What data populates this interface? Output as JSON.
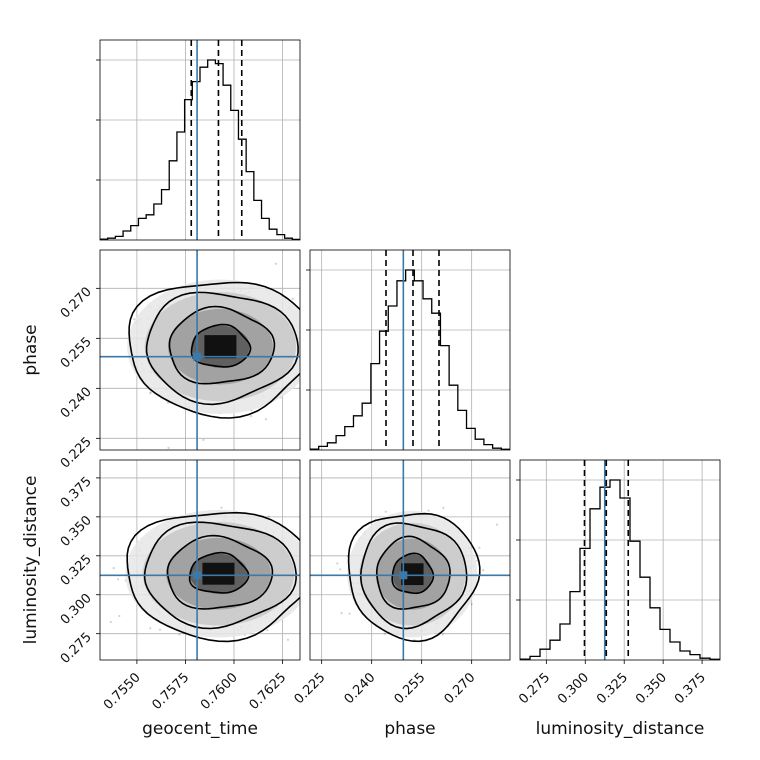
{
  "chart_data": {
    "type": "corner",
    "parameters": [
      {
        "key": "geocent_time",
        "label": "geocent_time",
        "truth": 0.7581,
        "ticks": [
          "0.7550",
          "0.7575",
          "0.7600",
          "0.7625"
        ],
        "tick_values": [
          0.755,
          0.7575,
          0.76,
          0.7625
        ],
        "range": [
          0.7531,
          0.7634
        ],
        "quantiles": [
          0.7578,
          0.7592,
          0.7604
        ]
      },
      {
        "key": "phase",
        "label": "phase",
        "truth": 0.2495,
        "ticks": [
          "0.225",
          "0.240",
          "0.255",
          "0.270"
        ],
        "tick_values": [
          0.225,
          0.24,
          0.255,
          0.27
        ],
        "range": [
          0.2215,
          0.2815
        ],
        "quantiles": [
          0.2443,
          0.2524,
          0.2602
        ]
      },
      {
        "key": "luminosity_distance",
        "label": "luminosity_distance",
        "truth": 0.3125,
        "ticks": [
          "0.275",
          "0.300",
          "0.325",
          "0.350",
          "0.375"
        ],
        "tick_values": [
          0.275,
          0.3,
          0.325,
          0.35,
          0.375
        ],
        "range": [
          0.2581,
          0.3865
        ],
        "quantiles": [
          0.2995,
          0.3135,
          0.3276
        ]
      }
    ],
    "y_tick_labels": {
      "phase": [
        "0.270",
        "0.255",
        "0.240",
        "0.225"
      ],
      "luminosity_distance": [
        "0.375",
        "0.350",
        "0.325",
        "0.300",
        "0.275"
      ]
    },
    "histograms": {
      "geocent_time": [
        0.005,
        0.01,
        0.02,
        0.05,
        0.08,
        0.12,
        0.14,
        0.2,
        0.28,
        0.44,
        0.6,
        0.78,
        0.88,
        0.96,
        1.0,
        0.98,
        0.86,
        0.72,
        0.56,
        0.38,
        0.22,
        0.12,
        0.06,
        0.03,
        0.01,
        0.003
      ],
      "phase": [
        0.005,
        0.02,
        0.04,
        0.08,
        0.13,
        0.19,
        0.26,
        0.48,
        0.66,
        0.8,
        0.94,
        1.0,
        0.94,
        0.84,
        0.76,
        0.58,
        0.36,
        0.22,
        0.12,
        0.06,
        0.03,
        0.01,
        0.004
      ],
      "luminosity_distance": [
        0.005,
        0.02,
        0.06,
        0.11,
        0.2,
        0.38,
        0.62,
        0.84,
        0.96,
        1.0,
        0.9,
        0.66,
        0.46,
        0.29,
        0.17,
        0.1,
        0.05,
        0.03,
        0.01,
        0.004
      ]
    },
    "contours": [
      {
        "x": "geocent_time",
        "y": "phase",
        "center": [
          0.7593,
          0.2525
        ],
        "sigma": [
          0.0015,
          0.0063
        ],
        "levels": [
          1.0,
          1.8,
          2.6,
          3.2
        ]
      },
      {
        "x": "geocent_time",
        "y": "luminosity_distance",
        "center": [
          0.7592,
          0.3135
        ],
        "sigma": [
          0.0015,
          0.0128
        ],
        "levels": [
          1.0,
          1.8,
          2.6,
          3.2
        ]
      },
      {
        "x": "phase",
        "y": "luminosity_distance",
        "center": [
          0.2522,
          0.3132
        ],
        "sigma": [
          0.0061,
          0.0127
        ],
        "levels": [
          1.0,
          1.8,
          2.6,
          3.2
        ]
      }
    ],
    "truth_color": "#3c78a8",
    "grid": true
  }
}
